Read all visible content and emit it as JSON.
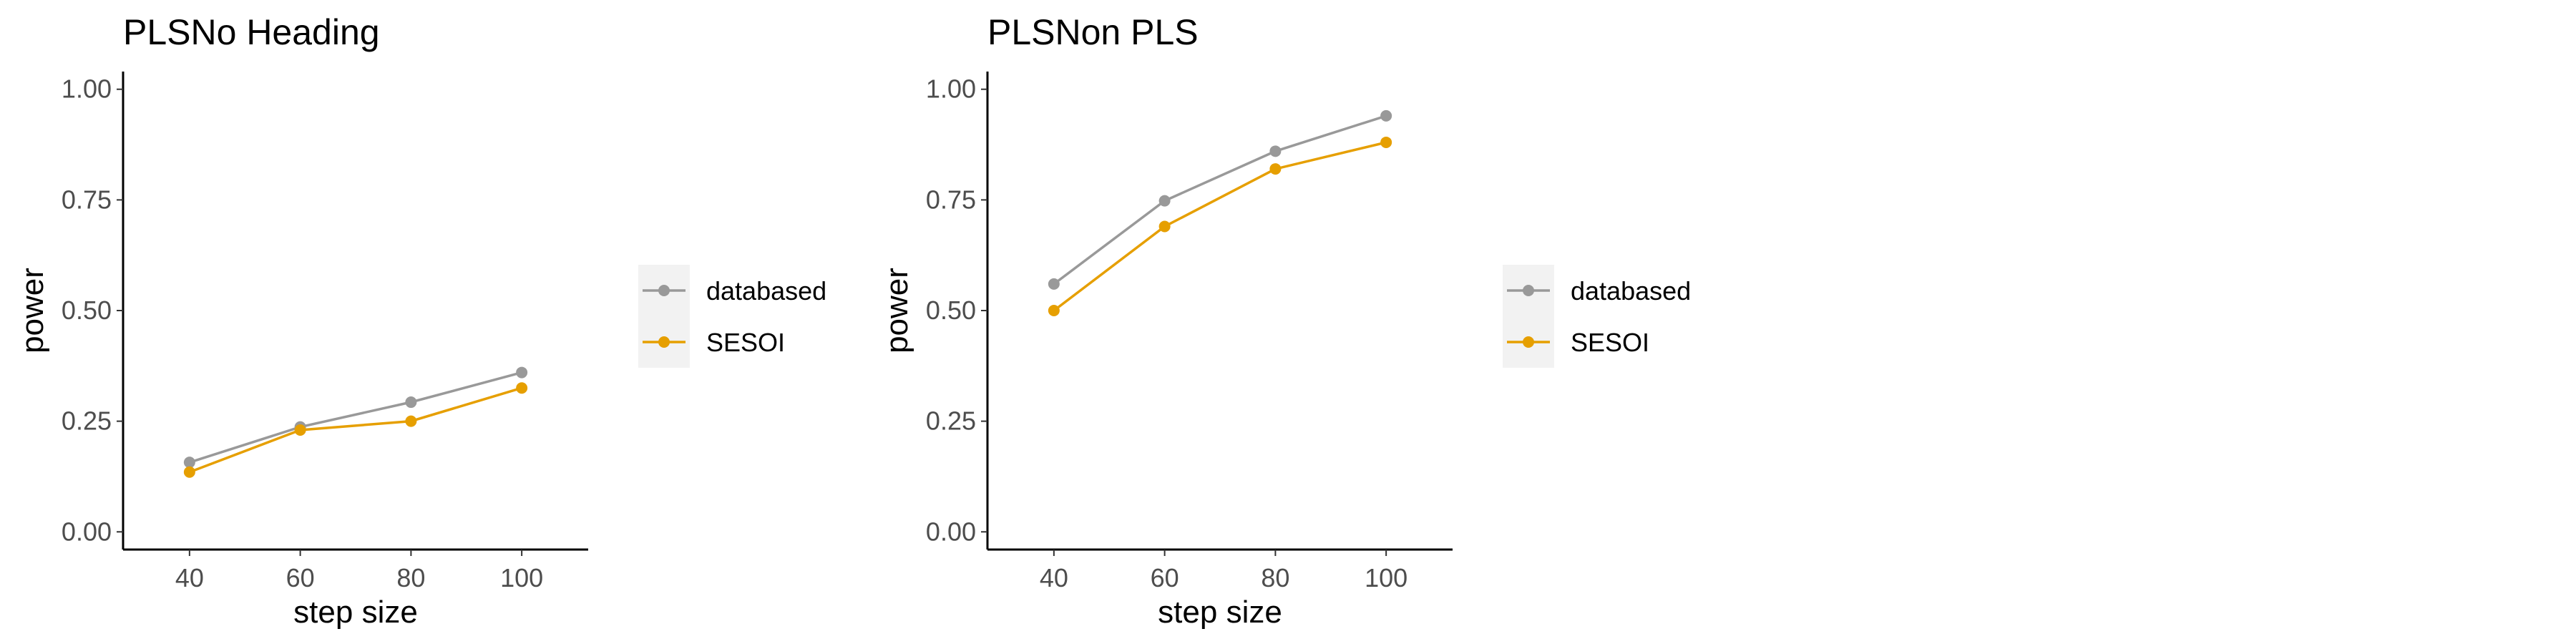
{
  "chart_data": [
    {
      "type": "line",
      "title": "PLSNo Heading",
      "xlabel": "step size",
      "ylabel": "power",
      "x": [
        40,
        60,
        80,
        100
      ],
      "xticks": [
        "40",
        "60",
        "80",
        "100"
      ],
      "yticks": [
        "0.00",
        "0.25",
        "0.50",
        "0.75",
        "1.00"
      ],
      "xlim": [
        28,
        112
      ],
      "ylim": [
        -0.04,
        1.04
      ],
      "grid": false,
      "legend_position": "right",
      "series": [
        {
          "name": "databased",
          "color": "#999999",
          "values": [
            0.157,
            0.237,
            0.293,
            0.36
          ]
        },
        {
          "name": "SESOI",
          "color": "#E69F00",
          "values": [
            0.135,
            0.23,
            0.25,
            0.325
          ]
        }
      ]
    },
    {
      "type": "line",
      "title": "PLSNon PLS",
      "xlabel": "step size",
      "ylabel": "power",
      "x": [
        40,
        60,
        80,
        100
      ],
      "xticks": [
        "40",
        "60",
        "80",
        "100"
      ],
      "yticks": [
        "0.00",
        "0.25",
        "0.50",
        "0.75",
        "1.00"
      ],
      "xlim": [
        28,
        112
      ],
      "ylim": [
        -0.04,
        1.04
      ],
      "grid": false,
      "legend_position": "right",
      "series": [
        {
          "name": "databased",
          "color": "#999999",
          "values": [
            0.56,
            0.748,
            0.86,
            0.94
          ]
        },
        {
          "name": "SESOI",
          "color": "#E69F00",
          "values": [
            0.5,
            0.69,
            0.82,
            0.88
          ]
        }
      ]
    }
  ]
}
